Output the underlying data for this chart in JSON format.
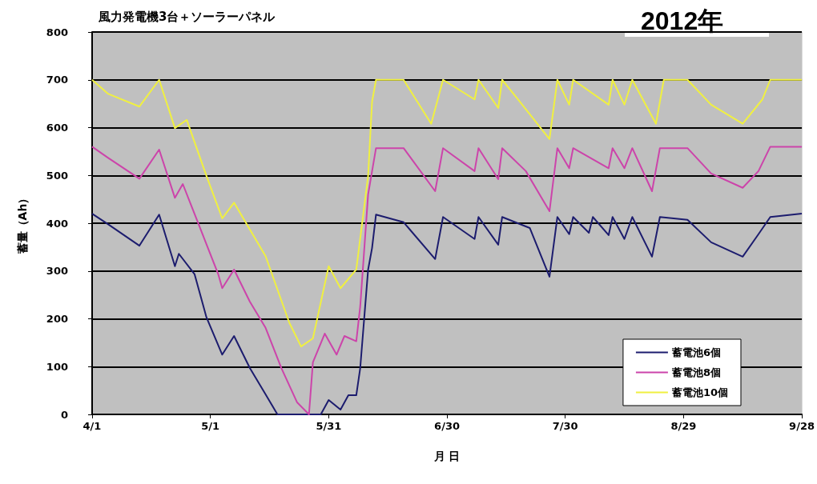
{
  "chart_data": {
    "type": "line",
    "title": "風力発電機3台＋ソーラーパネル",
    "xlabel": "月 日",
    "ylabel": "蓄量（Ah）",
    "annotations": [
      "2012年"
    ],
    "xlim": [
      "--04-01",
      "--09-28"
    ],
    "xticks": [
      {
        "value": "--04-01",
        "label": "4/1"
      },
      {
        "value": "--05-01",
        "label": "5/1"
      },
      {
        "value": "--05-31",
        "label": "5/31"
      },
      {
        "value": "--06-30",
        "label": "6/30"
      },
      {
        "value": "--07-30",
        "label": "7/30"
      },
      {
        "value": "--08-29",
        "label": "8/29"
      },
      {
        "value": "--09-28",
        "label": "9/28"
      }
    ],
    "ylim": [
      0,
      800
    ],
    "yticks": [
      0,
      100,
      200,
      300,
      400,
      500,
      600,
      700,
      800
    ],
    "grid": "y",
    "legend": "bottom right",
    "marker": "none",
    "line_style": "solid",
    "series": [
      {
        "name": "蓄電池6個",
        "color": "#1c1c6e",
        "x": [
          "--04-01",
          "--04-05",
          "--04-13",
          "--04-18",
          "--04-22",
          "--04-23",
          "--04-27",
          "--04-30",
          "--05-04",
          "--05-07",
          "--05-11",
          "--05-15",
          "--05-18",
          "--05-29",
          "--05-31",
          "--06-03",
          "--06-05",
          "--06-07",
          "--06-08",
          "--06-10",
          "--06-11",
          "--06-12",
          "--06-19",
          "--06-27",
          "--06-29",
          "--07-07",
          "--07-08",
          "--07-13",
          "--07-14",
          "--07-21",
          "--07-26",
          "--07-28",
          "--07-31",
          "--08-01",
          "--08-05",
          "--08-06",
          "--08-10",
          "--08-11",
          "--08-14",
          "--08-16",
          "--08-21",
          "--08-23",
          "--08-30",
          "--09-05",
          "--09-13",
          "--09-17",
          "--09-20",
          "--09-28"
        ],
        "values": [
          420,
          398,
          353,
          418,
          310,
          336,
          293,
          203,
          125,
          164,
          97,
          42,
          0,
          0,
          30,
          10,
          40,
          40,
          97,
          303,
          348,
          418,
          402,
          325,
          413,
          367,
          413,
          355,
          413,
          390,
          288,
          413,
          377,
          413,
          380,
          413,
          375,
          413,
          367,
          413,
          330,
          413,
          407,
          360,
          330,
          377,
          413,
          420
        ]
      },
      {
        "name": "蓄電池8個",
        "color": "#cc44aa",
        "x": [
          "--04-01",
          "--04-05",
          "--04-13",
          "--04-18",
          "--04-22",
          "--04-24",
          "--04-28",
          "--05-03",
          "--05-04",
          "--05-07",
          "--05-11",
          "--05-15",
          "--05-19",
          "--05-23",
          "--05-26",
          "--05-27",
          "--05-30",
          "--06-02",
          "--06-04",
          "--06-07",
          "--06-08",
          "--06-10",
          "--06-12",
          "--06-19",
          "--06-27",
          "--06-29",
          "--07-07",
          "--07-08",
          "--07-13",
          "--07-14",
          "--07-20",
          "--07-26",
          "--07-28",
          "--07-31",
          "--08-01",
          "--08-10",
          "--08-11",
          "--08-14",
          "--08-16",
          "--08-21",
          "--08-23",
          "--08-30",
          "--09-05",
          "--09-13",
          "--09-17",
          "--09-20",
          "--09-28"
        ],
        "values": [
          560,
          537,
          493,
          554,
          453,
          482,
          398,
          293,
          264,
          303,
          236,
          181,
          97,
          25,
          0,
          109,
          169,
          125,
          164,
          153,
          226,
          460,
          557,
          557,
          467,
          557,
          509,
          557,
          492,
          557,
          509,
          425,
          557,
          515,
          557,
          515,
          557,
          515,
          557,
          467,
          557,
          557,
          504,
          474,
          509,
          560,
          560
        ]
      },
      {
        "name": "蓄電池10個",
        "color": "#f0f040",
        "x": [
          "--04-01",
          "--04-05",
          "--04-13",
          "--04-18",
          "--04-22",
          "--04-25",
          "--04-30",
          "--05-04",
          "--05-07",
          "--05-15",
          "--05-21",
          "--05-24",
          "--05-27",
          "--05-31",
          "--06-03",
          "--06-07",
          "--06-10",
          "--06-11",
          "--06-12",
          "--06-19",
          "--06-26",
          "--06-29",
          "--07-07",
          "--07-08",
          "--07-13",
          "--07-14",
          "--07-18",
          "--07-26",
          "--07-28",
          "--07-31",
          "--08-01",
          "--08-10",
          "--08-11",
          "--08-14",
          "--08-16",
          "--08-22",
          "--08-24",
          "--08-30",
          "--09-05",
          "--09-13",
          "--09-18",
          "--09-20",
          "--09-28"
        ],
        "values": [
          700,
          671,
          644,
          700,
          599,
          616,
          499,
          410,
          443,
          331,
          192,
          142,
          159,
          310,
          264,
          303,
          499,
          654,
          700,
          700,
          608,
          700,
          659,
          700,
          641,
          700,
          659,
          576,
          700,
          648,
          700,
          648,
          700,
          648,
          700,
          608,
          700,
          700,
          648,
          608,
          659,
          700,
          700
        ]
      }
    ]
  }
}
